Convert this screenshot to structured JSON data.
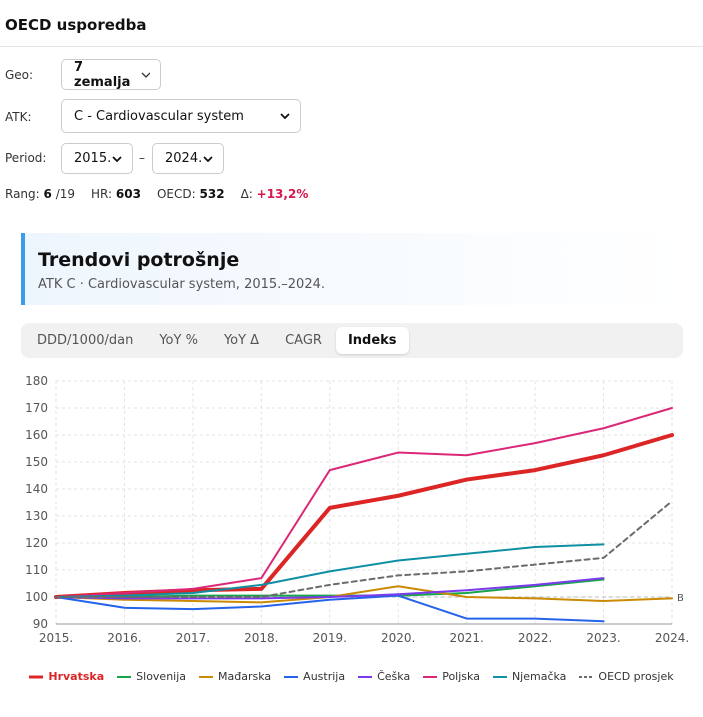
{
  "header": {
    "title": "OECD usporedba"
  },
  "filters": {
    "geo": {
      "label": "Geo:",
      "value": "7 zemalja"
    },
    "atk": {
      "label": "ATK:",
      "value": "C - Cardiovascular system"
    },
    "period": {
      "label": "Period:",
      "from": "2015.",
      "separator": "–",
      "to": "2024."
    }
  },
  "stats": [
    {
      "label": "Rang:",
      "value": "6",
      "suffix": "/19"
    },
    {
      "label": "HR:",
      "value": "603"
    },
    {
      "label": "OECD:",
      "value": "532"
    },
    {
      "label": "Δ:",
      "value": "+13,2%"
    }
  ],
  "panel": {
    "title": "Trendovi potrošnje",
    "subtitle": "ATK C · Cardiovascular system, 2015.–2024."
  },
  "tabs": {
    "items": [
      "DDD/1000/dan",
      "YoY %",
      "YoY Δ",
      "CAGR",
      "Indeks"
    ],
    "active": 4
  },
  "chart_data": {
    "type": "line",
    "categories": [
      "2015.",
      "2016.",
      "2017.",
      "2018.",
      "2019.",
      "2020.",
      "2021.",
      "2022.",
      "2023.",
      "2024."
    ],
    "series": [
      {
        "name": "Hrvatska",
        "color": "#dc2626",
        "values": [
          100,
          101.5,
          102.5,
          103,
          133,
          137.5,
          143.5,
          147,
          152.5,
          160
        ]
      },
      {
        "name": "Slovenija",
        "color": "#16a34a",
        "values": [
          100,
          100,
          100.5,
          100.5,
          100.5,
          100.5,
          101.5,
          104,
          106.5,
          null
        ]
      },
      {
        "name": "Mađarska",
        "color": "#ca8a04",
        "values": [
          100,
          99,
          98.5,
          98,
          100,
          104,
          100,
          99.5,
          98.5,
          99.5
        ]
      },
      {
        "name": "Austrija",
        "color": "#2563eb",
        "values": [
          100,
          96,
          95.5,
          96.5,
          99,
          100.5,
          92,
          92,
          91,
          null
        ]
      },
      {
        "name": "Češka",
        "color": "#7c3aed",
        "values": [
          100,
          99.5,
          99.5,
          99.5,
          100,
          101,
          102.5,
          104.5,
          107,
          null
        ]
      },
      {
        "name": "Poljska",
        "color": "#db2777",
        "values": [
          100,
          101.5,
          103,
          107,
          147,
          153.5,
          152.5,
          157,
          162.5,
          170
        ]
      },
      {
        "name": "Njemačka",
        "color": "#0e8fa3",
        "values": [
          100,
          100.5,
          101.5,
          104.5,
          109.5,
          113.5,
          116,
          118.5,
          119.5,
          null
        ]
      },
      {
        "name": "OECD prosjek",
        "color": "#6b6b6b",
        "dashed": true,
        "values": [
          100,
          100,
          100,
          100,
          104.5,
          108,
          109.5,
          112,
          114.5,
          135.5
        ]
      }
    ],
    "highlight": "Hrvatska",
    "reference_line": {
      "value": 100,
      "label": "B"
    },
    "ylim": [
      90,
      180
    ],
    "yticks": [
      90,
      100,
      110,
      120,
      130,
      140,
      150,
      160,
      170,
      180
    ],
    "grid": true,
    "legend": "bottom"
  }
}
